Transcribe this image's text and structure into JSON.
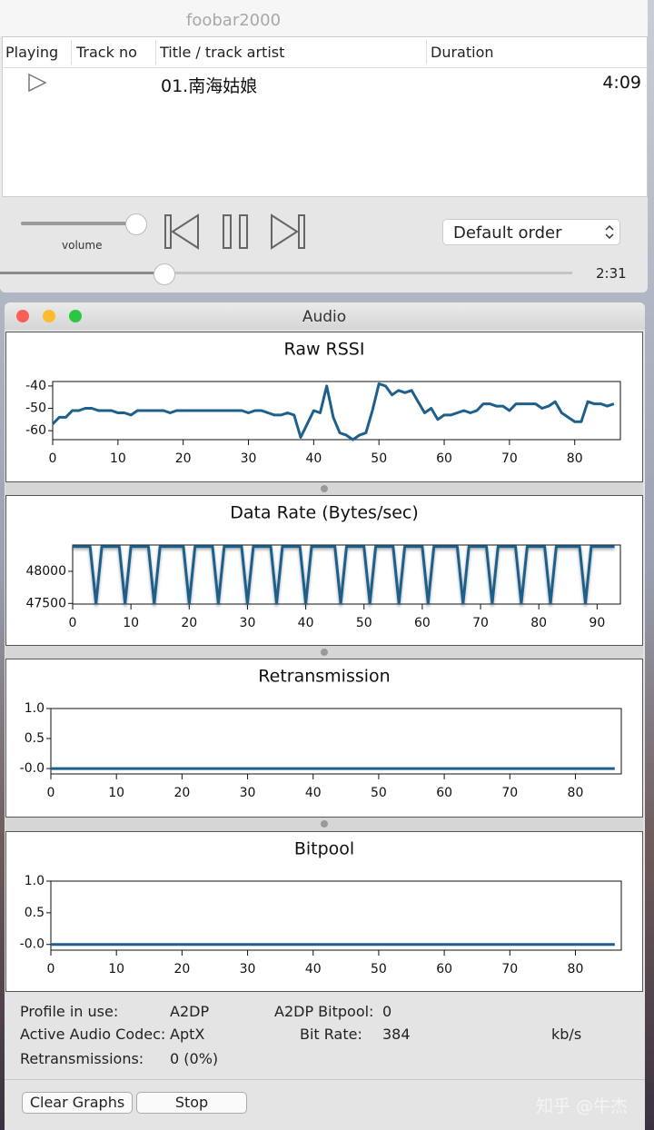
{
  "player": {
    "title": "foobar2000",
    "columns": [
      "Playing",
      "Track no",
      "Title / track artist",
      "Duration"
    ],
    "rows": [
      {
        "title": "01.南海姑娘",
        "duration": "4:09"
      }
    ],
    "volume_label": "volume",
    "order": "Default order",
    "elapsed": "2:31"
  },
  "audio": {
    "title": "Audio",
    "info": [
      {
        "label": "Profile in use:",
        "value": "A2DP"
      },
      {
        "label": "Active Audio Codec:",
        "value": "AptX"
      },
      {
        "label": "Retransmissions:",
        "value": "0 (0%)"
      },
      {
        "label": "A2DP Bitpool:",
        "value": "0"
      },
      {
        "label": "Bit Rate:",
        "value": "384",
        "unit": "kb/s"
      }
    ],
    "buttons": [
      "Clear Graphs",
      "Stop"
    ]
  },
  "chart_data": [
    {
      "type": "line",
      "title": "Raw RSSI",
      "color": "#1f5f8b",
      "values": [
        -57,
        -54,
        -54,
        -51,
        -51,
        -50,
        -50,
        -51,
        -51,
        -51,
        -52,
        -52,
        -53,
        -51,
        -51,
        -51,
        -51,
        -51,
        -52,
        -51,
        -51,
        -51,
        -51,
        -51,
        -51,
        -51,
        -51,
        -51,
        -51,
        -51,
        -52,
        -51,
        -51,
        -52,
        -53,
        -53,
        -52,
        -53,
        -63,
        -57,
        -51,
        -52,
        -40,
        -54,
        -61,
        -62,
        -64,
        -62,
        -61,
        -51,
        -39,
        -40,
        -44,
        -42,
        -43,
        -42,
        -47,
        -52,
        -50,
        -55,
        -53,
        -53,
        -52,
        -51,
        -52,
        -51,
        -48,
        -48,
        -49,
        -49,
        -51,
        -48,
        -48,
        -48,
        -48,
        -50,
        -49,
        -47,
        -52,
        -54,
        -56,
        -56,
        -47,
        -48,
        -48,
        -49,
        -48
      ],
      "xlim": [
        0,
        87
      ],
      "ylim": [
        -64,
        -38
      ],
      "xticks": [
        0,
        10,
        20,
        30,
        40,
        50,
        60,
        70,
        80
      ],
      "yticks": [
        -40,
        -50,
        -60
      ]
    },
    {
      "type": "line",
      "title": "Data Rate (Bytes/sec)",
      "color": "#1f5f8b",
      "values": [
        48384,
        48384,
        48384,
        48384,
        47500,
        48384,
        48384,
        48384,
        48384,
        47500,
        48384,
        48384,
        48384,
        48384,
        47500,
        48384,
        48384,
        48384,
        48384,
        48384,
        47500,
        48384,
        48384,
        48384,
        48384,
        47500,
        48384,
        48384,
        48384,
        48384,
        47500,
        48384,
        48384,
        48384,
        48384,
        47500,
        48384,
        48384,
        48384,
        48384,
        47500,
        48384,
        48384,
        48384,
        48384,
        48384,
        47500,
        48384,
        48384,
        48384,
        48384,
        47500,
        48384,
        48384,
        48384,
        48384,
        47500,
        48384,
        48384,
        48384,
        48384,
        47500,
        48384,
        48384,
        48384,
        48384,
        48384,
        47500,
        48384,
        48384,
        48384,
        48384,
        47500,
        48384,
        48384,
        48384,
        48384,
        47500,
        48384,
        48384,
        48384,
        48384,
        47500,
        48384,
        48384,
        48384,
        48384,
        48384,
        47500,
        48384,
        48384,
        48384,
        48384,
        48384
      ],
      "xlim": [
        0,
        94
      ],
      "ylim": [
        47490,
        48410
      ],
      "xticks": [
        0,
        10,
        20,
        30,
        40,
        50,
        60,
        70,
        80,
        90
      ],
      "yticks": [
        48000,
        47500
      ]
    },
    {
      "type": "line",
      "title": "Retransmission",
      "color": "#1f5f8b",
      "values": [
        0,
        0,
        0,
        0,
        0,
        0,
        0,
        0,
        0,
        0,
        0,
        0,
        0,
        0,
        0,
        0,
        0,
        0,
        0,
        0,
        0,
        0,
        0,
        0,
        0,
        0,
        0,
        0,
        0,
        0,
        0,
        0,
        0,
        0,
        0,
        0,
        0,
        0,
        0,
        0,
        0,
        0,
        0,
        0,
        0,
        0,
        0,
        0,
        0,
        0,
        0,
        0,
        0,
        0,
        0,
        0,
        0,
        0,
        0,
        0,
        0,
        0,
        0,
        0,
        0,
        0,
        0,
        0,
        0,
        0,
        0,
        0,
        0,
        0,
        0,
        0,
        0,
        0,
        0,
        0,
        0,
        0,
        0,
        0,
        0,
        0,
        0
      ],
      "xlim": [
        0,
        87
      ],
      "ylim": [
        -0.09,
        1.0
      ],
      "xticks": [
        0,
        10,
        20,
        30,
        40,
        50,
        60,
        70,
        80
      ],
      "yticks": [
        {
          "value": 1.0,
          "label": "1.0"
        },
        {
          "value": 0.5,
          "label": "0.5"
        },
        {
          "value": 0,
          "label": "-0.0"
        }
      ]
    },
    {
      "type": "line",
      "title": "Bitpool",
      "color": "#1f5f8b",
      "values": [
        0,
        0,
        0,
        0,
        0,
        0,
        0,
        0,
        0,
        0,
        0,
        0,
        0,
        0,
        0,
        0,
        0,
        0,
        0,
        0,
        0,
        0,
        0,
        0,
        0,
        0,
        0,
        0,
        0,
        0,
        0,
        0,
        0,
        0,
        0,
        0,
        0,
        0,
        0,
        0,
        0,
        0,
        0,
        0,
        0,
        0,
        0,
        0,
        0,
        0,
        0,
        0,
        0,
        0,
        0,
        0,
        0,
        0,
        0,
        0,
        0,
        0,
        0,
        0,
        0,
        0,
        0,
        0,
        0,
        0,
        0,
        0,
        0,
        0,
        0,
        0,
        0,
        0,
        0,
        0,
        0,
        0,
        0,
        0,
        0,
        0,
        0
      ],
      "xlim": [
        0,
        87
      ],
      "ylim": [
        -0.09,
        1.0
      ],
      "xticks": [
        0,
        10,
        20,
        30,
        40,
        50,
        60,
        70,
        80
      ],
      "yticks": [
        {
          "value": 1.0,
          "label": "1.0"
        },
        {
          "value": 0.5,
          "label": "0.5"
        },
        {
          "value": 0,
          "label": "-0.0"
        }
      ]
    }
  ],
  "watermark": "知乎 @牛杰"
}
